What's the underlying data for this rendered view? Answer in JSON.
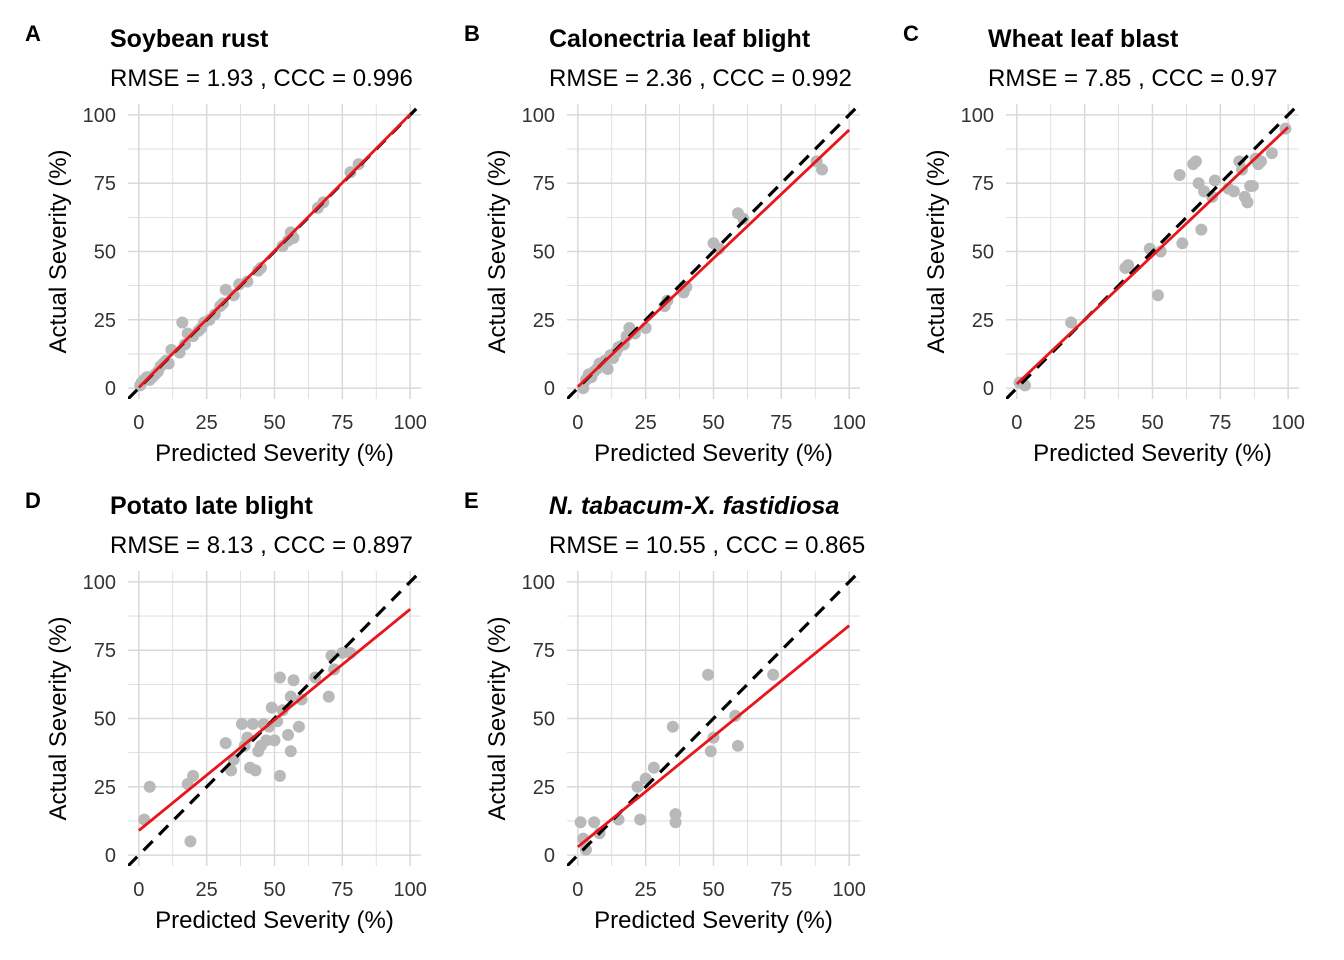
{
  "colors": {
    "points": "#b9b9b9",
    "fit_line": "#e8161b",
    "identity_line": "#000000",
    "grid": "#d9d9d9",
    "text": "#000000"
  },
  "chart_data": [
    {
      "type": "scatter",
      "panel": "A",
      "title": "Soybean rust",
      "stats": "RMSE =  1.93 ,  CCC =  0.996",
      "xlabel": "Predicted Severity (%)",
      "ylabel": "Actual Severity (%)",
      "xlim": [
        -4,
        104
      ],
      "ylim": [
        -4,
        104
      ],
      "x_ticks": [
        0,
        25,
        50,
        75,
        100
      ],
      "y_ticks": [
        0,
        25,
        50,
        75,
        100
      ],
      "grid": true,
      "identity_line": true,
      "fit_line": {
        "intercept": 0.2,
        "slope": 1.0
      },
      "points": [
        [
          0.5,
          1
        ],
        [
          1,
          2
        ],
        [
          2,
          3
        ],
        [
          3,
          4
        ],
        [
          4,
          3
        ],
        [
          5,
          4
        ],
        [
          6,
          5
        ],
        [
          7,
          6
        ],
        [
          8,
          8
        ],
        [
          9,
          9
        ],
        [
          10,
          10
        ],
        [
          11,
          9
        ],
        [
          12,
          14
        ],
        [
          15,
          13
        ],
        [
          16,
          24
        ],
        [
          17,
          16
        ],
        [
          18,
          20
        ],
        [
          20,
          19
        ],
        [
          22,
          21
        ],
        [
          23,
          22
        ],
        [
          24,
          24
        ],
        [
          26,
          25
        ],
        [
          28,
          27
        ],
        [
          30,
          30
        ],
        [
          31,
          31
        ],
        [
          32,
          36
        ],
        [
          35,
          34
        ],
        [
          37,
          38
        ],
        [
          40,
          39
        ],
        [
          44,
          43
        ],
        [
          45,
          44
        ],
        [
          53,
          52
        ],
        [
          55,
          54
        ],
        [
          56,
          57
        ],
        [
          57,
          55
        ],
        [
          66,
          66
        ],
        [
          68,
          68
        ],
        [
          78,
          79
        ],
        [
          81,
          82
        ]
      ]
    },
    {
      "type": "scatter",
      "panel": "B",
      "title": "Calonectria leaf blight",
      "stats": "RMSE =  2.36 ,  CCC =  0.992",
      "xlabel": "Predicted Severity (%)",
      "ylabel": "Actual Severity (%)",
      "xlim": [
        -4,
        104
      ],
      "ylim": [
        -4,
        104
      ],
      "x_ticks": [
        0,
        25,
        50,
        75,
        100
      ],
      "y_ticks": [
        0,
        25,
        50,
        75,
        100
      ],
      "grid": true,
      "identity_line": true,
      "fit_line": {
        "intercept": 0.5,
        "slope": 0.94
      },
      "points": [
        [
          2,
          0
        ],
        [
          3,
          3
        ],
        [
          4,
          5
        ],
        [
          5,
          4
        ],
        [
          6,
          6
        ],
        [
          7,
          7
        ],
        [
          8,
          9
        ],
        [
          9,
          8
        ],
        [
          10,
          10
        ],
        [
          11,
          7
        ],
        [
          12,
          12
        ],
        [
          13,
          11
        ],
        [
          14,
          13
        ],
        [
          15,
          15
        ],
        [
          17,
          16
        ],
        [
          18,
          19
        ],
        [
          19,
          22
        ],
        [
          21,
          20
        ],
        [
          25,
          22
        ],
        [
          32,
          30
        ],
        [
          33,
          32
        ],
        [
          39,
          35
        ],
        [
          40,
          37
        ],
        [
          50,
          53
        ],
        [
          52,
          51
        ],
        [
          59,
          64
        ],
        [
          61,
          62
        ],
        [
          88,
          83
        ],
        [
          90,
          80
        ]
      ]
    },
    {
      "type": "scatter",
      "panel": "C",
      "title": "Wheat leaf blast",
      "stats": "RMSE =  7.85 ,  CCC =  0.97",
      "xlabel": "Predicted Severity (%)",
      "ylabel": "Actual Severity (%)",
      "xlim": [
        -4,
        104
      ],
      "ylim": [
        -4,
        104
      ],
      "x_ticks": [
        0,
        25,
        50,
        75,
        100
      ],
      "y_ticks": [
        0,
        25,
        50,
        75,
        100
      ],
      "grid": true,
      "identity_line": true,
      "fit_line": {
        "intercept": 1.5,
        "slope": 0.94
      },
      "points": [
        [
          1,
          2
        ],
        [
          3,
          1
        ],
        [
          20,
          24
        ],
        [
          40,
          44
        ],
        [
          41,
          45
        ],
        [
          49,
          51
        ],
        [
          52,
          34
        ],
        [
          53,
          50
        ],
        [
          60,
          78
        ],
        [
          61,
          53
        ],
        [
          65,
          82
        ],
        [
          66,
          83
        ],
        [
          67,
          75
        ],
        [
          68,
          58
        ],
        [
          69,
          72
        ],
        [
          72,
          70
        ],
        [
          73,
          76
        ],
        [
          78,
          73
        ],
        [
          80,
          72
        ],
        [
          82,
          83
        ],
        [
          83,
          80
        ],
        [
          84,
          70
        ],
        [
          85,
          68
        ],
        [
          86,
          74
        ],
        [
          87,
          74
        ],
        [
          88,
          84
        ],
        [
          89,
          82
        ],
        [
          90,
          83
        ],
        [
          94,
          86
        ],
        [
          99,
          95
        ]
      ]
    },
    {
      "type": "scatter",
      "panel": "D",
      "title": "Potato late blight",
      "stats": "RMSE =  8.13 ,  CCC =  0.897",
      "xlabel": "Predicted Severity (%)",
      "ylabel": "Actual Severity (%)",
      "xlim": [
        -4,
        104
      ],
      "ylim": [
        -4,
        104
      ],
      "x_ticks": [
        0,
        25,
        50,
        75,
        100
      ],
      "y_ticks": [
        0,
        25,
        50,
        75,
        100
      ],
      "grid": true,
      "identity_line": true,
      "fit_line": {
        "intercept": 9,
        "slope": 0.81
      },
      "points": [
        [
          2,
          13
        ],
        [
          4,
          25
        ],
        [
          18,
          26
        ],
        [
          19,
          5
        ],
        [
          20,
          29
        ],
        [
          32,
          41
        ],
        [
          34,
          31
        ],
        [
          35,
          35
        ],
        [
          38,
          48
        ],
        [
          39,
          40
        ],
        [
          40,
          43
        ],
        [
          41,
          32
        ],
        [
          42,
          48
        ],
        [
          43,
          31
        ],
        [
          44,
          38
        ],
        [
          45,
          40
        ],
        [
          46,
          48
        ],
        [
          47,
          42
        ],
        [
          48,
          47
        ],
        [
          49,
          54
        ],
        [
          50,
          42
        ],
        [
          51,
          49
        ],
        [
          52,
          65
        ],
        [
          52,
          29
        ],
        [
          53,
          53
        ],
        [
          55,
          44
        ],
        [
          56,
          38
        ],
        [
          56,
          58
        ],
        [
          57,
          64
        ],
        [
          59,
          47
        ],
        [
          60,
          57
        ],
        [
          65,
          65
        ],
        [
          70,
          58
        ],
        [
          71,
          73
        ],
        [
          72,
          68
        ],
        [
          75,
          74
        ],
        [
          78,
          74
        ]
      ]
    },
    {
      "type": "scatter",
      "panel": "E",
      "title": "N. tabacum-X. fastidiosa",
      "title_style": "bold-italic",
      "stats": "RMSE =  10.55 ,  CCC =  0.865",
      "xlabel": "Predicted Severity (%)",
      "ylabel": "Actual Severity (%)",
      "xlim": [
        -4,
        104
      ],
      "ylim": [
        -4,
        104
      ],
      "x_ticks": [
        0,
        25,
        50,
        75,
        100
      ],
      "y_ticks": [
        0,
        25,
        50,
        75,
        100
      ],
      "grid": true,
      "identity_line": true,
      "fit_line": {
        "intercept": 3,
        "slope": 0.81
      },
      "points": [
        [
          1,
          12
        ],
        [
          2,
          6
        ],
        [
          3,
          2
        ],
        [
          6,
          12
        ],
        [
          8,
          8
        ],
        [
          15,
          13
        ],
        [
          22,
          25
        ],
        [
          23,
          13
        ],
        [
          25,
          28
        ],
        [
          28,
          32
        ],
        [
          35,
          47
        ],
        [
          36,
          15
        ],
        [
          36,
          12
        ],
        [
          48,
          66
        ],
        [
          49,
          38
        ],
        [
          50,
          43
        ],
        [
          58,
          51
        ],
        [
          59,
          40
        ],
        [
          72,
          66
        ]
      ]
    }
  ]
}
